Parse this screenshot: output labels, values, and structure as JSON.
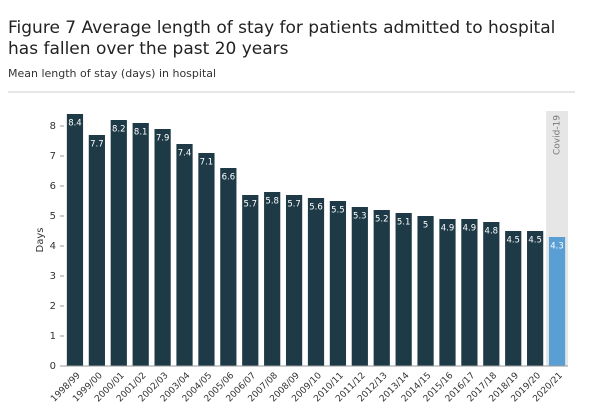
{
  "chart_data": {
    "type": "bar",
    "title": "Figure 7 Average length of stay for patients admitted to hospital has fallen over the past 20 years",
    "subtitle": "Mean length of stay (days) in hospital",
    "y_label": "Days",
    "annotation": "Covid-19",
    "categories": [
      "1998/99",
      "1999/00",
      "2000/01",
      "2001/02",
      "2002/03",
      "2003/04",
      "2004/05",
      "2005/06",
      "2006/07",
      "2007/08",
      "2008/09",
      "2009/10",
      "2010/11",
      "2011/12",
      "2012/13",
      "2013/14",
      "2014/15",
      "2015/16",
      "2016/17",
      "2017/18",
      "2018/19",
      "2019/20",
      "2020/21"
    ],
    "values": [
      8.4,
      7.7,
      8.2,
      8.1,
      7.9,
      7.4,
      7.1,
      6.6,
      5.7,
      5.8,
      5.7,
      5.6,
      5.5,
      5.3,
      5.2,
      5.1,
      5,
      4.9,
      4.9,
      4.8,
      4.5,
      4.5,
      4.3
    ],
    "colors": [
      "#1d3a46",
      "#1d3a46",
      "#1d3a46",
      "#1d3a46",
      "#1d3a46",
      "#1d3a46",
      "#1d3a46",
      "#1d3a46",
      "#1d3a46",
      "#1d3a46",
      "#1d3a46",
      "#1d3a46",
      "#1d3a46",
      "#1d3a46",
      "#1d3a46",
      "#1d3a46",
      "#1d3a46",
      "#1d3a46",
      "#1d3a46",
      "#1d3a46",
      "#1d3a46",
      "#1d3a46",
      "#5a9fd4"
    ],
    "ylim": [
      0,
      8.5
    ],
    "yticks": [
      0,
      1,
      2,
      3,
      4,
      5,
      6,
      7,
      8
    ]
  }
}
